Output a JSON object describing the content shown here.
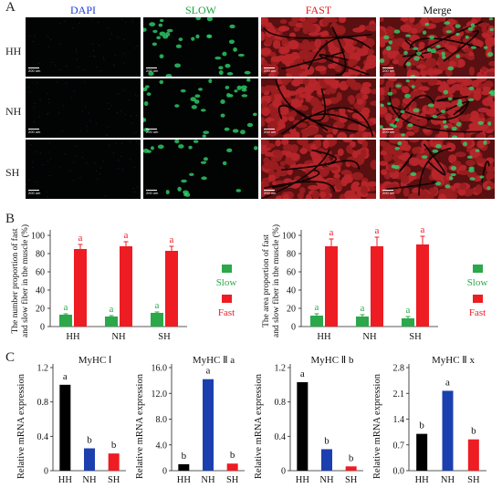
{
  "panel_letters": {
    "a": "A",
    "b": "B",
    "c": "C"
  },
  "panel_a": {
    "channels": [
      {
        "label": "DAPI",
        "color": "#1f3fd6"
      },
      {
        "label": "SLOW",
        "color": "#19a33a"
      },
      {
        "label": "FAST",
        "color": "#e11b1b"
      },
      {
        "label": "Merge",
        "color": "#111111"
      }
    ],
    "rows": [
      "HH",
      "NH",
      "SH"
    ],
    "scale_labels": [
      [
        "200 um",
        "200 um",
        "200 um",
        "200 um"
      ],
      [
        "200 um",
        "200 um",
        "200 um",
        "200 um"
      ],
      [
        "200 um",
        "200 um",
        "200 um",
        "200 um"
      ]
    ]
  },
  "chart_data": [
    {
      "type": "bar",
      "ylabel": "The number proportion of fast and slow fiber in the muscle (%)",
      "categories": [
        "HH",
        "NH",
        "SH"
      ],
      "ylim": [
        0,
        100
      ],
      "yticks": [
        0,
        20,
        40,
        60,
        80,
        100
      ],
      "series": [
        {
          "name": "Slow",
          "color": "#2aa84a",
          "values": [
            13,
            11,
            15
          ],
          "errors": [
            1,
            1,
            1
          ],
          "letters": [
            "a",
            "a",
            "a"
          ]
        },
        {
          "name": "Fast",
          "color": "#ee1c23",
          "values": [
            85,
            88,
            83
          ],
          "errors": [
            5,
            5,
            5
          ],
          "letters": [
            "a",
            "a",
            "a"
          ]
        }
      ],
      "legend": "right"
    },
    {
      "type": "bar",
      "ylabel": "The area proportion of fast and slow fiber in the muscle (%)",
      "categories": [
        "HH",
        "NH",
        "SH"
      ],
      "ylim": [
        0,
        100
      ],
      "yticks": [
        0,
        20,
        40,
        60,
        80,
        100
      ],
      "series": [
        {
          "name": "Slow",
          "color": "#2aa84a",
          "values": [
            12,
            11,
            9
          ],
          "errors": [
            2,
            2,
            2
          ],
          "letters": [
            "a",
            "a",
            "a"
          ]
        },
        {
          "name": "Fast",
          "color": "#ee1c23",
          "values": [
            88,
            88,
            90
          ],
          "errors": [
            8,
            10,
            9
          ],
          "letters": [
            "a",
            "a",
            "a"
          ]
        }
      ],
      "legend": "right"
    },
    {
      "type": "bar",
      "title": "MyHC Ⅰ",
      "ylabel": "Relative mRNA expression",
      "categories": [
        "HH",
        "NH",
        "SH"
      ],
      "ylim": [
        0,
        1.2
      ],
      "yticks": [
        0,
        0.4,
        0.8,
        1.2
      ],
      "ytick_labels": [
        "0",
        "0.4",
        "0.8",
        "1.2"
      ],
      "values": [
        1.0,
        0.26,
        0.2
      ],
      "colors": [
        "#000000",
        "#1c3fb0",
        "#ee1c23"
      ],
      "letters": [
        "a",
        "b",
        "b"
      ]
    },
    {
      "type": "bar",
      "title": "MyHC Ⅱ a",
      "ylabel": "Relative mRNA expression",
      "categories": [
        "HH",
        "NH",
        "SH"
      ],
      "ylim": [
        0,
        16
      ],
      "yticks": [
        0,
        4,
        8,
        12,
        16
      ],
      "ytick_labels": [
        "0",
        "4.0",
        "8.0",
        "12.0",
        "16.0"
      ],
      "values": [
        1.0,
        14.2,
        1.1
      ],
      "colors": [
        "#000000",
        "#1c3fb0",
        "#ee1c23"
      ],
      "letters": [
        "b",
        "a",
        "b"
      ]
    },
    {
      "type": "bar",
      "title": "MyHC Ⅱ b",
      "ylabel": "Relative mRNA expression",
      "categories": [
        "HH",
        "NH",
        "SH"
      ],
      "ylim": [
        0,
        1.2
      ],
      "yticks": [
        0,
        0.4,
        0.8,
        1.2
      ],
      "ytick_labels": [
        "0",
        "0.4",
        "0.8",
        "1.2"
      ],
      "values": [
        1.03,
        0.25,
        0.05
      ],
      "colors": [
        "#000000",
        "#1c3fb0",
        "#ee1c23"
      ],
      "letters": [
        "a",
        "b",
        "b"
      ]
    },
    {
      "type": "bar",
      "title": "MyHC Ⅱ x",
      "ylabel": "Relative mRNA expression",
      "categories": [
        "HH",
        "NH",
        "SH"
      ],
      "ylim": [
        0,
        2.8
      ],
      "yticks": [
        0,
        0.7,
        1.4,
        2.1,
        2.8
      ],
      "ytick_labels": [
        "0.0",
        "0.7",
        "1.4",
        "2.1",
        "2.8"
      ],
      "values": [
        1.0,
        2.17,
        0.85
      ],
      "colors": [
        "#000000",
        "#1c3fb0",
        "#ee1c23"
      ],
      "letters": [
        "b",
        "a",
        "b"
      ]
    }
  ]
}
